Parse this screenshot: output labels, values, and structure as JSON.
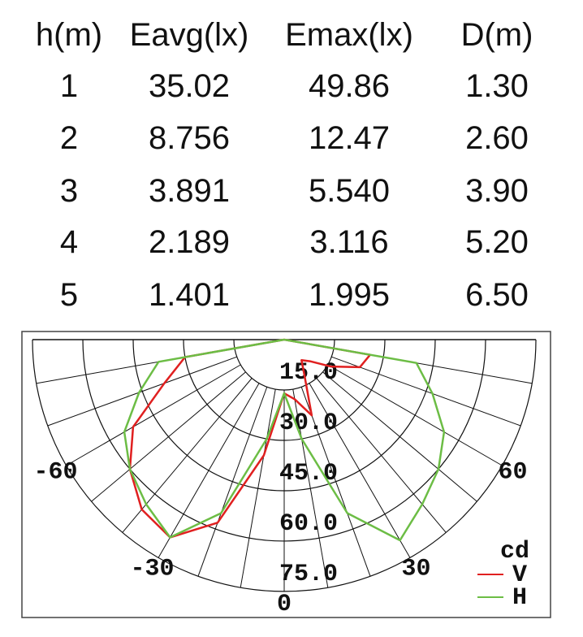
{
  "table": {
    "headers": [
      "h(m)",
      "Eavg(lx)",
      "Emax(lx)",
      "D(m)"
    ],
    "rows": [
      [
        "1",
        "35.02",
        "49.86",
        "1.30"
      ],
      [
        "2",
        "8.756",
        "12.47",
        "2.60"
      ],
      [
        "3",
        "3.891",
        "5.540",
        "3.90"
      ],
      [
        "4",
        "2.189",
        "3.116",
        "5.20"
      ],
      [
        "5",
        "1.401",
        "1.995",
        "6.50"
      ]
    ]
  },
  "chart_data": {
    "type": "polar",
    "unit_label": "cd",
    "angles": [
      -90,
      -80,
      -70,
      -60,
      -50,
      -40,
      -30,
      -20,
      -10,
      0,
      10,
      20,
      30,
      40,
      50,
      60,
      70,
      80,
      90
    ],
    "series": [
      {
        "name": "V",
        "color": "#e02020",
        "values": [
          0,
          30,
          38,
          52,
          60,
          66,
          68,
          58,
          35,
          16,
          18,
          24,
          12,
          8,
          10,
          16,
          24,
          26,
          0
        ]
      },
      {
        "name": "H",
        "color": "#6cbd45",
        "values": [
          0,
          38,
          46,
          55,
          60,
          64,
          68,
          55,
          30,
          16,
          30,
          55,
          69,
          64,
          60,
          55,
          47,
          40,
          0
        ]
      }
    ],
    "rlim": [
      0,
      75
    ],
    "rticks": [
      {
        "value": 15,
        "label": "15.0"
      },
      {
        "value": 30,
        "label": "30.0"
      },
      {
        "value": 45,
        "label": "45.0"
      },
      {
        "value": 60,
        "label": "60.0"
      },
      {
        "value": 75,
        "label": "75.0"
      }
    ],
    "angle_ticks": [
      -60,
      -30,
      0,
      30,
      60
    ]
  }
}
